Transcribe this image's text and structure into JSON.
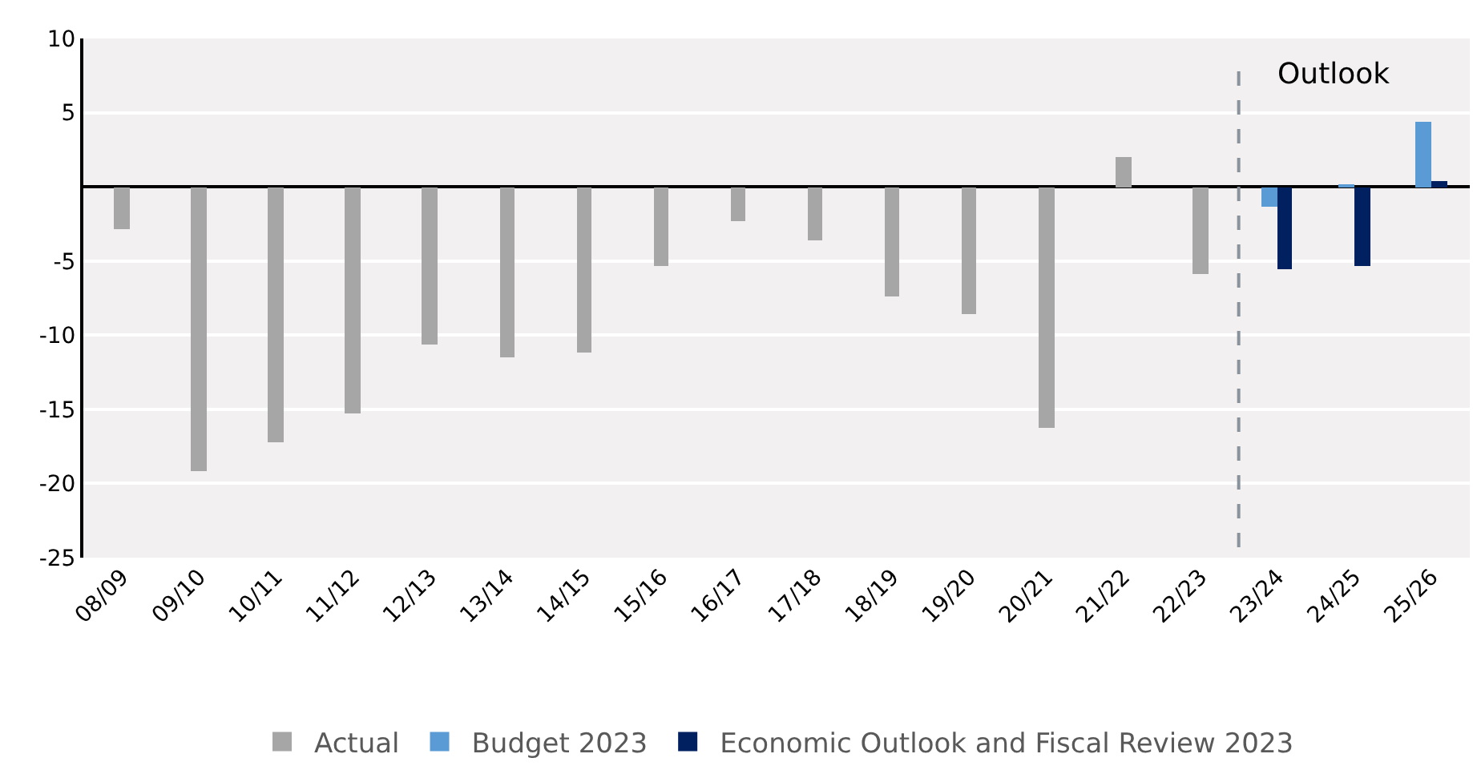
{
  "chart_data": {
    "type": "bar",
    "categories": [
      "08/09",
      "09/10",
      "10/11",
      "11/12",
      "12/13",
      "13/14",
      "14/15",
      "15/16",
      "16/17",
      "17/18",
      "18/19",
      "19/20",
      "20/21",
      "21/22",
      "22/23",
      "23/24",
      "24/25",
      "25/26"
    ],
    "series": [
      {
        "name": "Actual",
        "color": "#a6a6a6",
        "values": [
          -2.9,
          -19.2,
          -17.2,
          -15.3,
          -10.6,
          -11.5,
          -11.2,
          -5.3,
          -2.3,
          -3.6,
          -7.4,
          -8.6,
          -16.3,
          2.0,
          -5.9,
          null,
          null,
          null
        ]
      },
      {
        "name": "Budget 2023",
        "color": "#5b9bd5",
        "values": [
          null,
          null,
          null,
          null,
          null,
          null,
          null,
          null,
          null,
          null,
          null,
          null,
          null,
          null,
          null,
          -1.3,
          0.2,
          4.4
        ]
      },
      {
        "name": "Economic Outlook and Fiscal Review 2023",
        "color": "#002060",
        "values": [
          null,
          null,
          null,
          null,
          null,
          null,
          null,
          null,
          null,
          null,
          null,
          null,
          null,
          null,
          null,
          -5.6,
          -5.3,
          0.4
        ]
      }
    ],
    "ylim": [
      -25,
      10
    ],
    "yticks": [
      10,
      5,
      {
        "value": 0,
        "label": null
      },
      -5,
      -10,
      -15,
      -20,
      -25
    ],
    "grid": "y",
    "legend": "bottom",
    "ref_lines": [
      {
        "axis": "x",
        "value": "23/24",
        "label": "Outlook",
        "color": "#8a939b",
        "line_style": "dashed"
      }
    ]
  }
}
